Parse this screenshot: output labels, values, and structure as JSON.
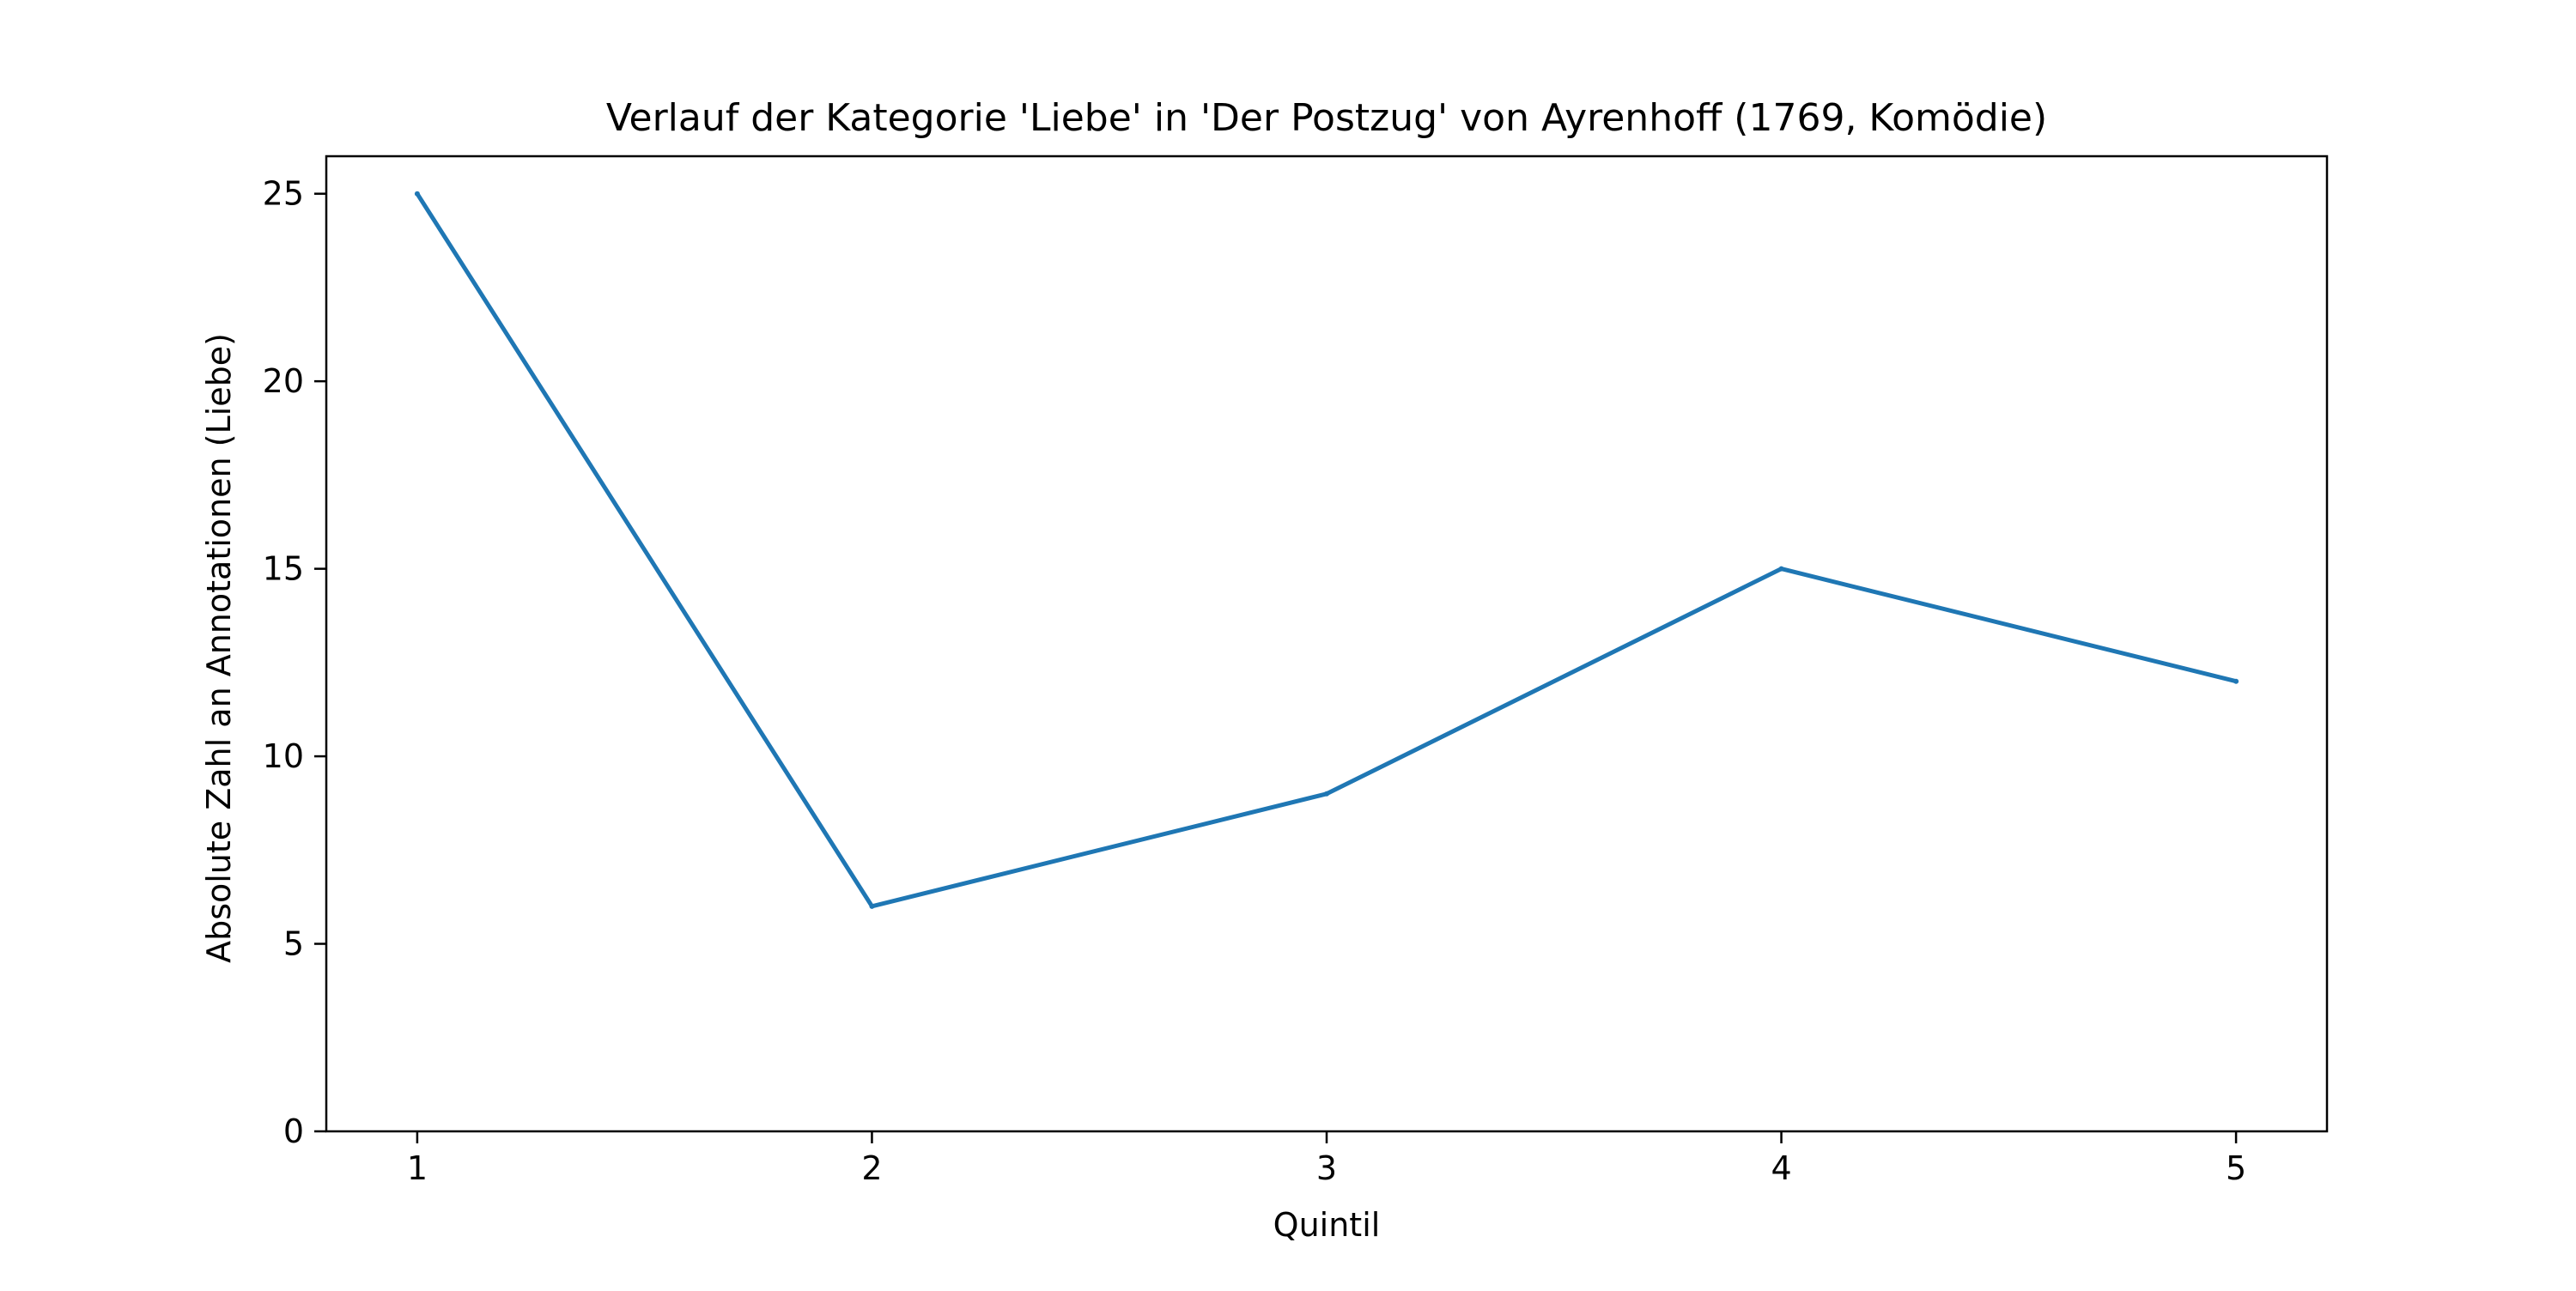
{
  "chart_data": {
    "type": "line",
    "title": "Verlauf der Kategorie 'Liebe' in 'Der Postzug' von Ayrenhoff (1769, Komödie)",
    "xlabel": "Quintil",
    "ylabel": "Absolute Zahl an Annotationen (Liebe)",
    "x": [
      1,
      2,
      3,
      4,
      5
    ],
    "x_ticks": [
      "1",
      "2",
      "3",
      "4",
      "5"
    ],
    "y_ticks": [
      "0",
      "5",
      "10",
      "15",
      "20",
      "25"
    ],
    "xlim": [
      0.8,
      5.2
    ],
    "ylim": [
      0,
      26
    ],
    "series": [
      {
        "values": [
          25,
          6,
          9,
          15,
          12
        ],
        "color": "#1f77b4"
      }
    ],
    "grid": false,
    "legend": "none"
  }
}
